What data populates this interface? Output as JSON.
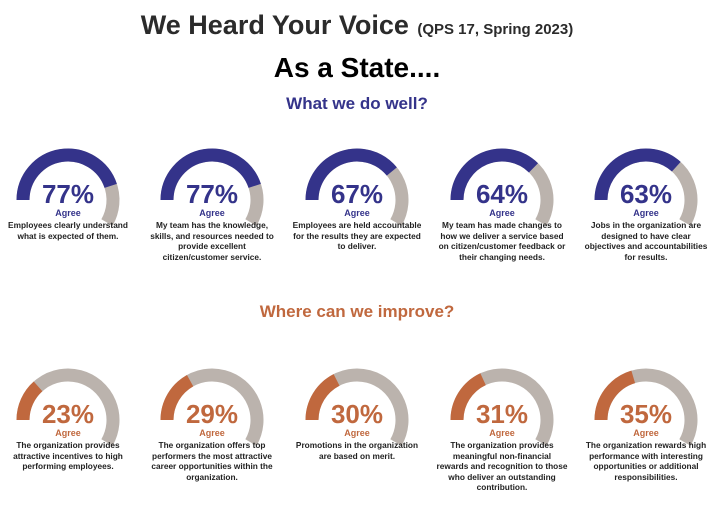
{
  "header": {
    "title": "We Heard Your Voice",
    "title_note": "(QPS 17, Spring 2023)",
    "subtitle": "As a State...."
  },
  "colors": {
    "well": "#34338a",
    "improve": "#c0683e",
    "track": "#bbb3ad"
  },
  "chart_data": [
    {
      "type": "gauge",
      "title": "What we do well?",
      "series": "Agree",
      "unit": "%",
      "items": [
        {
          "value": 77,
          "label": "77%",
          "agree": "Agree",
          "description": "Employees clearly understand what is expected of them."
        },
        {
          "value": 77,
          "label": "77%",
          "agree": "Agree",
          "description": "My team has the knowledge, skills, and resources needed to provide excellent citizen/customer service."
        },
        {
          "value": 67,
          "label": "67%",
          "agree": "Agree",
          "description": "Employees are held accountable for the results they are expected to deliver."
        },
        {
          "value": 64,
          "label": "64%",
          "agree": "Agree",
          "description": "My team has made changes to how we deliver a service based on citizen/customer feedback or their changing needs."
        },
        {
          "value": 63,
          "label": "63%",
          "agree": "Agree",
          "description": "Jobs in the organization are designed to have clear objectives and accountabilities for results."
        }
      ]
    },
    {
      "type": "gauge",
      "title": "Where can we improve?",
      "series": "Agree",
      "unit": "%",
      "items": [
        {
          "value": 23,
          "label": "23%",
          "agree": "Agree",
          "description": "The organization provides attractive incentives to high performing employees."
        },
        {
          "value": 29,
          "label": "29%",
          "agree": "Agree",
          "description": "The organization offers top performers the most attractive career opportunities within the organization."
        },
        {
          "value": 30,
          "label": "30%",
          "agree": "Agree",
          "description": "Promotions in the organization are based on merit."
        },
        {
          "value": 31,
          "label": "31%",
          "agree": "Agree",
          "description": "The organization provides meaningful non-financial rewards and recognition to those who deliver an outstanding contribution."
        },
        {
          "value": 35,
          "label": "35%",
          "agree": "Agree",
          "description": "The organization rewards high performance with interesting opportunities or additional responsibilities."
        }
      ]
    }
  ]
}
